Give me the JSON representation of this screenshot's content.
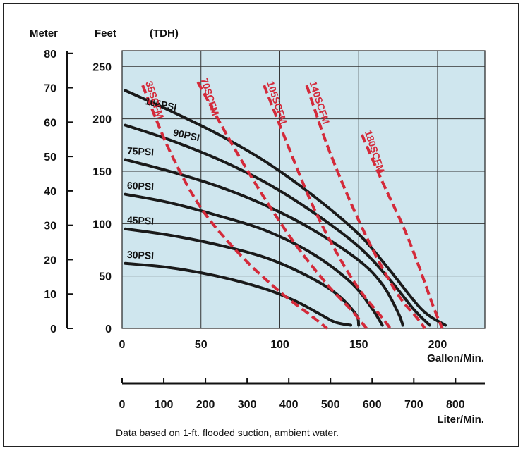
{
  "chart_data": {
    "type": "line",
    "axes": {
      "meter_title": "Meter",
      "feet_title": "Feet",
      "tdh_title": "(TDH)",
      "gpm_title": "Gallon/Min.",
      "lpm_title": "Liter/Min.",
      "meter_ticks": [
        "0",
        "10",
        "20",
        "30",
        "40",
        "50",
        "60",
        "70",
        "80"
      ],
      "feet_ticks": [
        "0",
        "50",
        "100",
        "150",
        "200",
        "250"
      ],
      "gpm_ticks": [
        "0",
        "50",
        "100",
        "150",
        "200"
      ],
      "lpm_ticks": [
        "0",
        "100",
        "200",
        "300",
        "400",
        "500",
        "600",
        "700",
        "800"
      ],
      "xlim_gpm": [
        0,
        230
      ],
      "ylim_feet": [
        0,
        265
      ],
      "grid": true
    },
    "psi_series": [
      {
        "name": "105PSI",
        "points": [
          [
            2,
            227
          ],
          [
            30,
            208
          ],
          [
            60,
            186
          ],
          [
            90,
            160
          ],
          [
            120,
            128
          ],
          [
            150,
            90
          ],
          [
            170,
            55
          ],
          [
            190,
            18
          ],
          [
            205,
            3
          ]
        ]
      },
      {
        "name": "90PSI",
        "points": [
          [
            2,
            194
          ],
          [
            30,
            180
          ],
          [
            60,
            162
          ],
          [
            90,
            140
          ],
          [
            120,
            112
          ],
          [
            150,
            78
          ],
          [
            170,
            46
          ],
          [
            185,
            18
          ],
          [
            195,
            3
          ]
        ]
      },
      {
        "name": "75PSI",
        "points": [
          [
            2,
            161
          ],
          [
            30,
            150
          ],
          [
            60,
            136
          ],
          [
            90,
            118
          ],
          [
            120,
            95
          ],
          [
            150,
            65
          ],
          [
            165,
            42
          ],
          [
            175,
            15
          ],
          [
            178,
            3
          ]
        ]
      },
      {
        "name": "60PSI",
        "points": [
          [
            2,
            128
          ],
          [
            30,
            120
          ],
          [
            60,
            108
          ],
          [
            90,
            94
          ],
          [
            120,
            72
          ],
          [
            145,
            44
          ],
          [
            158,
            20
          ],
          [
            165,
            3
          ]
        ]
      },
      {
        "name": "45PSI",
        "points": [
          [
            2,
            95
          ],
          [
            30,
            89
          ],
          [
            60,
            80
          ],
          [
            90,
            68
          ],
          [
            115,
            52
          ],
          [
            135,
            34
          ],
          [
            148,
            14
          ],
          [
            150,
            3
          ]
        ]
      },
      {
        "name": "30PSI",
        "points": [
          [
            2,
            62
          ],
          [
            30,
            58
          ],
          [
            60,
            50
          ],
          [
            90,
            38
          ],
          [
            110,
            26
          ],
          [
            125,
            14
          ],
          [
            135,
            6
          ],
          [
            145,
            3
          ]
        ]
      }
    ],
    "scfm_series": [
      {
        "name": "35SCFM",
        "points": [
          [
            13,
            232
          ],
          [
            30,
            170
          ],
          [
            50,
            115
          ],
          [
            75,
            70
          ],
          [
            100,
            35
          ],
          [
            120,
            12
          ],
          [
            130,
            0
          ]
        ]
      },
      {
        "name": "70SCFM",
        "points": [
          [
            48,
            235
          ],
          [
            70,
            175
          ],
          [
            90,
            125
          ],
          [
            110,
            80
          ],
          [
            130,
            42
          ],
          [
            145,
            18
          ],
          [
            155,
            0
          ]
        ]
      },
      {
        "name": "105SCFM",
        "points": [
          [
            90,
            232
          ],
          [
            105,
            175
          ],
          [
            120,
            120
          ],
          [
            135,
            75
          ],
          [
            150,
            38
          ],
          [
            165,
            10
          ],
          [
            170,
            0
          ]
        ]
      },
      {
        "name": "140SCFM",
        "points": [
          [
            117,
            232
          ],
          [
            130,
            175
          ],
          [
            145,
            120
          ],
          [
            160,
            72
          ],
          [
            175,
            32
          ],
          [
            187,
            10
          ],
          [
            192,
            0
          ]
        ]
      },
      {
        "name": "180SCFM",
        "points": [
          [
            152,
            185
          ],
          [
            165,
            140
          ],
          [
            178,
            98
          ],
          [
            188,
            60
          ],
          [
            197,
            22
          ],
          [
            203,
            0
          ]
        ]
      }
    ],
    "note": "Data based on 1-ft. flooded suction, ambient water."
  },
  "colors": {
    "plot_bg": "#cfe6ee",
    "psi_line": "#1a1a1a",
    "scfm_line": "#d42a3a"
  }
}
